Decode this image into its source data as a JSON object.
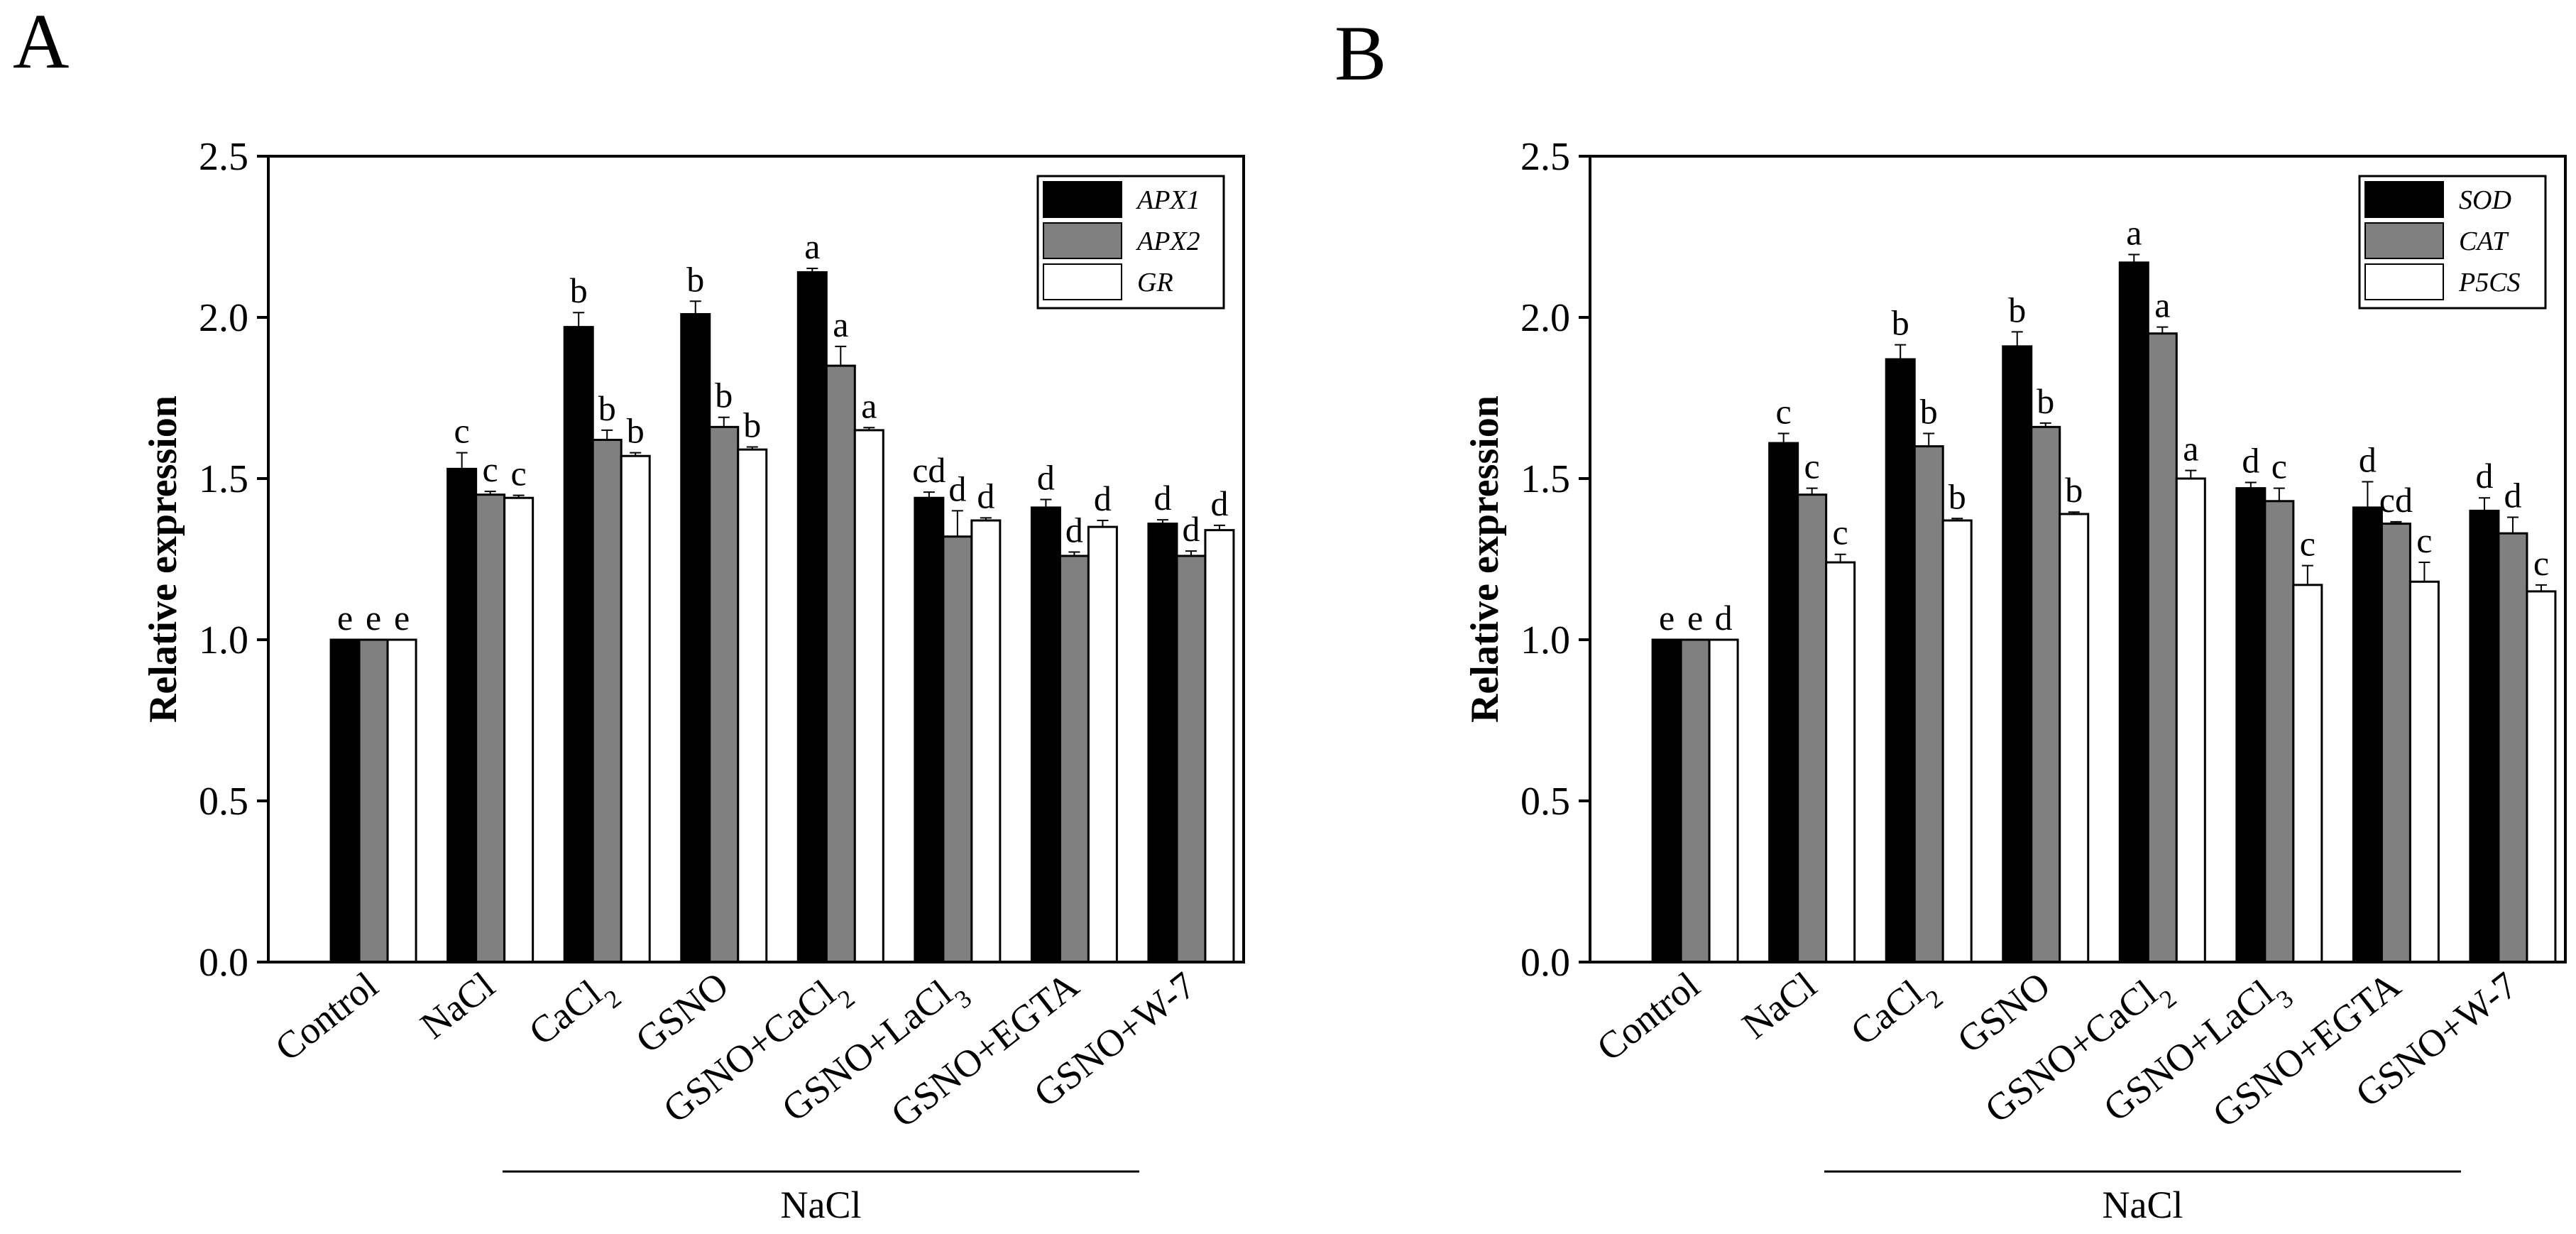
{
  "chart_data": [
    {
      "type": "bar",
      "panel_label": "A",
      "ylabel": "Relative expression",
      "ylim": [
        0,
        2.5
      ],
      "yticks": [
        "0.0",
        "0.5",
        "1.0",
        "1.5",
        "2.0",
        "2.5"
      ],
      "categories": [
        {
          "main": "Control",
          "sub": ""
        },
        {
          "main": "NaCl",
          "sub": ""
        },
        {
          "main": "CaCl",
          "sub": "2"
        },
        {
          "main": "GSNO",
          "sub": ""
        },
        {
          "main": "GSNO+CaCl",
          "sub": "2"
        },
        {
          "main": "GSNO+LaCl",
          "sub": "3"
        },
        {
          "main": "GSNO+EGTA",
          "sub": ""
        },
        {
          "main": "GSNO+W-7",
          "sub": ""
        }
      ],
      "group_label": "NaCl",
      "legend_position": "top-right",
      "series": [
        {
          "name": "APX1",
          "color": "#000000",
          "values": [
            1.0,
            1.53,
            1.97,
            2.01,
            2.14,
            1.44,
            1.41,
            1.36
          ],
          "errors": [
            0,
            0.05,
            0.045,
            0.04,
            0.012,
            0.018,
            0.025,
            0.012
          ],
          "letters": [
            "e",
            "c",
            "b",
            "b",
            "a",
            "cd",
            "d",
            "d"
          ]
        },
        {
          "name": "APX2",
          "color": "#808080",
          "values": [
            1.0,
            1.45,
            1.62,
            1.66,
            1.85,
            1.32,
            1.26,
            1.26
          ],
          "errors": [
            0,
            0.01,
            0.03,
            0.03,
            0.06,
            0.08,
            0.012,
            0.015
          ],
          "letters": [
            "e",
            "c",
            "b",
            "b",
            "a",
            "d",
            "d",
            "d"
          ]
        },
        {
          "name": "GR",
          "color": "#ffffff",
          "values": [
            1.0,
            1.44,
            1.57,
            1.59,
            1.65,
            1.37,
            1.35,
            1.34
          ],
          "errors": [
            0,
            0.008,
            0.01,
            0.008,
            0.008,
            0.008,
            0.02,
            0.015
          ],
          "letters": [
            "e",
            "c",
            "b",
            "b",
            "a",
            "d",
            "d",
            "d"
          ]
        }
      ]
    },
    {
      "type": "bar",
      "panel_label": "B",
      "ylabel": "Relative expression",
      "ylim": [
        0,
        2.5
      ],
      "yticks": [
        "0.0",
        "0.5",
        "1.0",
        "1.5",
        "2.0",
        "2.5"
      ],
      "categories": [
        {
          "main": "Control",
          "sub": ""
        },
        {
          "main": "NaCl",
          "sub": ""
        },
        {
          "main": "CaCl",
          "sub": "2"
        },
        {
          "main": "GSNO",
          "sub": ""
        },
        {
          "main": "GSNO+CaCl",
          "sub": "2"
        },
        {
          "main": "GSNO+LaCl",
          "sub": "3"
        },
        {
          "main": "GSNO+EGTA",
          "sub": ""
        },
        {
          "main": "GSNO+W-7",
          "sub": ""
        }
      ],
      "group_label": "NaCl",
      "legend_position": "top-right",
      "series": [
        {
          "name": "SOD",
          "color": "#000000",
          "values": [
            1.0,
            1.61,
            1.87,
            1.91,
            2.17,
            1.47,
            1.41,
            1.4
          ],
          "errors": [
            0,
            0.03,
            0.045,
            0.045,
            0.025,
            0.018,
            0.08,
            0.04
          ],
          "letters": [
            "e",
            "c",
            "b",
            "b",
            "a",
            "d",
            "d",
            "d"
          ]
        },
        {
          "name": "CAT",
          "color": "#808080",
          "values": [
            1.0,
            1.45,
            1.6,
            1.66,
            1.95,
            1.43,
            1.36,
            1.33
          ],
          "errors": [
            0,
            0.02,
            0.04,
            0.012,
            0.02,
            0.04,
            0.006,
            0.05
          ],
          "letters": [
            "e",
            "c",
            "b",
            "b",
            "a",
            "c",
            "cd",
            "d"
          ]
        },
        {
          "name": "P5CS",
          "color": "#ffffff",
          "values": [
            1.0,
            1.24,
            1.37,
            1.39,
            1.5,
            1.17,
            1.18,
            1.15
          ],
          "errors": [
            0,
            0.025,
            0.006,
            0.006,
            0.025,
            0.06,
            0.06,
            0.02
          ],
          "letters": [
            "d",
            "c",
            "b",
            "b",
            "a",
            "c",
            "c",
            "c"
          ]
        }
      ]
    }
  ]
}
